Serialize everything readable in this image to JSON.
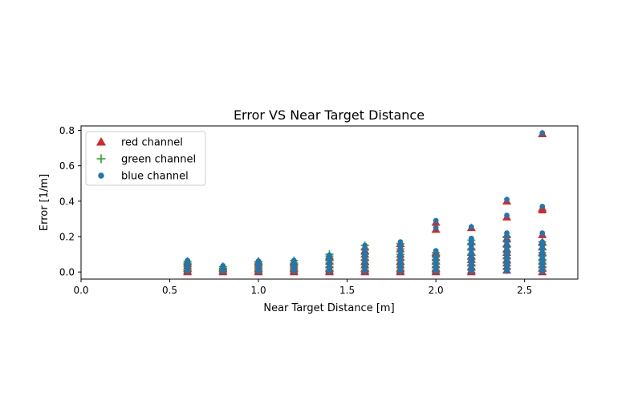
{
  "chart_data": {
    "type": "scatter",
    "title": "Error VS Near Target Distance",
    "xlabel": "Near Target Distance [m]",
    "ylabel": "Error [1/m]",
    "xlim": [
      0.0,
      2.8
    ],
    "ylim": [
      -0.04,
      0.825
    ],
    "xticks": [
      "0.0",
      "0.5",
      "1.0",
      "1.5",
      "2.0",
      "2.5"
    ],
    "yticks": [
      "0.0",
      "0.2",
      "0.4",
      "0.6",
      "0.8"
    ],
    "grid": false,
    "legend_position": "top-left",
    "colors": {
      "red": "#d62728",
      "green": "#2ca02c",
      "blue": "#1f77b4"
    },
    "series": [
      {
        "name": "red channel",
        "marker": "triangle",
        "points": [
          [
            0.6,
            0.0
          ],
          [
            0.6,
            0.01
          ],
          [
            0.6,
            0.02
          ],
          [
            0.6,
            0.035
          ],
          [
            0.6,
            0.05
          ],
          [
            0.6,
            0.06
          ],
          [
            0.8,
            0.0
          ],
          [
            0.8,
            0.01
          ],
          [
            0.8,
            0.02
          ],
          [
            0.8,
            0.03
          ],
          [
            1.0,
            0.0
          ],
          [
            1.0,
            0.01
          ],
          [
            1.0,
            0.02
          ],
          [
            1.0,
            0.035
          ],
          [
            1.0,
            0.05
          ],
          [
            1.0,
            0.06
          ],
          [
            1.2,
            0.0
          ],
          [
            1.2,
            0.01
          ],
          [
            1.2,
            0.02
          ],
          [
            1.2,
            0.035
          ],
          [
            1.2,
            0.05
          ],
          [
            1.2,
            0.06
          ],
          [
            1.4,
            0.0
          ],
          [
            1.4,
            0.01
          ],
          [
            1.4,
            0.02
          ],
          [
            1.4,
            0.04
          ],
          [
            1.4,
            0.06
          ],
          [
            1.4,
            0.08
          ],
          [
            1.4,
            0.09
          ],
          [
            1.6,
            0.0
          ],
          [
            1.6,
            0.01
          ],
          [
            1.6,
            0.02
          ],
          [
            1.6,
            0.04
          ],
          [
            1.6,
            0.06
          ],
          [
            1.6,
            0.08
          ],
          [
            1.6,
            0.1
          ],
          [
            1.6,
            0.12
          ],
          [
            1.6,
            0.14
          ],
          [
            1.8,
            0.0
          ],
          [
            1.8,
            0.01
          ],
          [
            1.8,
            0.02
          ],
          [
            1.8,
            0.04
          ],
          [
            1.8,
            0.06
          ],
          [
            1.8,
            0.08
          ],
          [
            1.8,
            0.1
          ],
          [
            1.8,
            0.13
          ],
          [
            1.8,
            0.16
          ],
          [
            2.0,
            0.0
          ],
          [
            2.0,
            0.01
          ],
          [
            2.0,
            0.02
          ],
          [
            2.0,
            0.04
          ],
          [
            2.0,
            0.06
          ],
          [
            2.0,
            0.08
          ],
          [
            2.0,
            0.1
          ],
          [
            2.0,
            0.11
          ],
          [
            2.0,
            0.24
          ],
          [
            2.0,
            0.28
          ],
          [
            2.2,
            0.0
          ],
          [
            2.2,
            0.01
          ],
          [
            2.2,
            0.03
          ],
          [
            2.2,
            0.05
          ],
          [
            2.2,
            0.07
          ],
          [
            2.2,
            0.09
          ],
          [
            2.2,
            0.11
          ],
          [
            2.2,
            0.14
          ],
          [
            2.2,
            0.17
          ],
          [
            2.2,
            0.25
          ],
          [
            2.4,
            0.01
          ],
          [
            2.4,
            0.03
          ],
          [
            2.4,
            0.05
          ],
          [
            2.4,
            0.07
          ],
          [
            2.4,
            0.09
          ],
          [
            2.4,
            0.11
          ],
          [
            2.4,
            0.13
          ],
          [
            2.4,
            0.16
          ],
          [
            2.4,
            0.19
          ],
          [
            2.4,
            0.21
          ],
          [
            2.4,
            0.31
          ],
          [
            2.4,
            0.4
          ],
          [
            2.6,
            0.0
          ],
          [
            2.6,
            0.02
          ],
          [
            2.6,
            0.04
          ],
          [
            2.6,
            0.06
          ],
          [
            2.6,
            0.08
          ],
          [
            2.6,
            0.11
          ],
          [
            2.6,
            0.14
          ],
          [
            2.6,
            0.17
          ],
          [
            2.6,
            0.21
          ],
          [
            2.6,
            0.35
          ],
          [
            2.6,
            0.36
          ],
          [
            2.6,
            0.78
          ]
        ]
      },
      {
        "name": "green channel",
        "marker": "plus",
        "points": [
          [
            0.6,
            0.01
          ],
          [
            0.6,
            0.03
          ],
          [
            0.6,
            0.05
          ],
          [
            0.6,
            0.06
          ],
          [
            0.8,
            0.01
          ],
          [
            0.8,
            0.02
          ],
          [
            0.8,
            0.03
          ],
          [
            1.0,
            0.01
          ],
          [
            1.0,
            0.03
          ],
          [
            1.0,
            0.05
          ],
          [
            1.0,
            0.06
          ],
          [
            1.2,
            0.01
          ],
          [
            1.2,
            0.03
          ],
          [
            1.2,
            0.05
          ],
          [
            1.2,
            0.065
          ],
          [
            1.4,
            0.01
          ],
          [
            1.4,
            0.03
          ],
          [
            1.4,
            0.05
          ],
          [
            1.4,
            0.07
          ],
          [
            1.4,
            0.09
          ],
          [
            1.4,
            0.1
          ],
          [
            1.6,
            0.01
          ],
          [
            1.6,
            0.04
          ],
          [
            1.6,
            0.07
          ],
          [
            1.6,
            0.1
          ],
          [
            1.6,
            0.13
          ],
          [
            1.6,
            0.15
          ],
          [
            1.8,
            0.01
          ],
          [
            1.8,
            0.04
          ],
          [
            1.8,
            0.07
          ],
          [
            1.8,
            0.1
          ],
          [
            1.8,
            0.13
          ],
          [
            1.8,
            0.16
          ],
          [
            2.0,
            0.01
          ],
          [
            2.0,
            0.03
          ],
          [
            2.0,
            0.05
          ],
          [
            2.0,
            0.07
          ],
          [
            2.0,
            0.09
          ],
          [
            2.0,
            0.11
          ],
          [
            2.2,
            0.01
          ],
          [
            2.2,
            0.04
          ],
          [
            2.2,
            0.07
          ],
          [
            2.2,
            0.1
          ],
          [
            2.2,
            0.13
          ],
          [
            2.2,
            0.16
          ],
          [
            2.2,
            0.18
          ],
          [
            2.4,
            0.02
          ],
          [
            2.4,
            0.05
          ],
          [
            2.4,
            0.08
          ],
          [
            2.4,
            0.11
          ],
          [
            2.4,
            0.14
          ],
          [
            2.4,
            0.17
          ],
          [
            2.4,
            0.2
          ],
          [
            2.6,
            0.01
          ],
          [
            2.6,
            0.03
          ],
          [
            2.6,
            0.05
          ],
          [
            2.6,
            0.07
          ],
          [
            2.6,
            0.09
          ],
          [
            2.6,
            0.11
          ],
          [
            2.6,
            0.13
          ],
          [
            2.6,
            0.15
          ],
          [
            2.6,
            0.17
          ]
        ]
      },
      {
        "name": "blue channel",
        "marker": "circle",
        "points": [
          [
            0.6,
            0.005
          ],
          [
            0.6,
            0.015
          ],
          [
            0.6,
            0.025
          ],
          [
            0.6,
            0.035
          ],
          [
            0.6,
            0.045
          ],
          [
            0.6,
            0.055
          ],
          [
            0.6,
            0.065
          ],
          [
            0.8,
            0.005
          ],
          [
            0.8,
            0.015
          ],
          [
            0.8,
            0.025
          ],
          [
            0.8,
            0.035
          ],
          [
            1.0,
            0.005
          ],
          [
            1.0,
            0.015
          ],
          [
            1.0,
            0.025
          ],
          [
            1.0,
            0.035
          ],
          [
            1.0,
            0.045
          ],
          [
            1.0,
            0.055
          ],
          [
            1.0,
            0.062
          ],
          [
            1.2,
            0.005
          ],
          [
            1.2,
            0.015
          ],
          [
            1.2,
            0.025
          ],
          [
            1.2,
            0.035
          ],
          [
            1.2,
            0.045
          ],
          [
            1.2,
            0.055
          ],
          [
            1.2,
            0.065
          ],
          [
            1.4,
            0.005
          ],
          [
            1.4,
            0.02
          ],
          [
            1.4,
            0.035
          ],
          [
            1.4,
            0.05
          ],
          [
            1.4,
            0.065
          ],
          [
            1.4,
            0.08
          ],
          [
            1.4,
            0.095
          ],
          [
            1.6,
            0.005
          ],
          [
            1.6,
            0.02
          ],
          [
            1.6,
            0.04
          ],
          [
            1.6,
            0.06
          ],
          [
            1.6,
            0.08
          ],
          [
            1.6,
            0.1
          ],
          [
            1.6,
            0.12
          ],
          [
            1.6,
            0.15
          ],
          [
            1.8,
            0.005
          ],
          [
            1.8,
            0.02
          ],
          [
            1.8,
            0.04
          ],
          [
            1.8,
            0.06
          ],
          [
            1.8,
            0.08
          ],
          [
            1.8,
            0.1
          ],
          [
            1.8,
            0.12
          ],
          [
            1.8,
            0.14
          ],
          [
            1.8,
            0.17
          ],
          [
            2.0,
            0.005
          ],
          [
            2.0,
            0.015
          ],
          [
            2.0,
            0.03
          ],
          [
            2.0,
            0.045
          ],
          [
            2.0,
            0.06
          ],
          [
            2.0,
            0.075
          ],
          [
            2.0,
            0.09
          ],
          [
            2.0,
            0.12
          ],
          [
            2.0,
            0.25
          ],
          [
            2.0,
            0.29
          ],
          [
            2.2,
            0.005
          ],
          [
            2.2,
            0.02
          ],
          [
            2.2,
            0.035
          ],
          [
            2.2,
            0.05
          ],
          [
            2.2,
            0.065
          ],
          [
            2.2,
            0.08
          ],
          [
            2.2,
            0.095
          ],
          [
            2.2,
            0.11
          ],
          [
            2.2,
            0.13
          ],
          [
            2.2,
            0.15
          ],
          [
            2.2,
            0.17
          ],
          [
            2.2,
            0.19
          ],
          [
            2.2,
            0.255
          ],
          [
            2.4,
            0.005
          ],
          [
            2.4,
            0.02
          ],
          [
            2.4,
            0.035
          ],
          [
            2.4,
            0.05
          ],
          [
            2.4,
            0.065
          ],
          [
            2.4,
            0.08
          ],
          [
            2.4,
            0.095
          ],
          [
            2.4,
            0.11
          ],
          [
            2.4,
            0.13
          ],
          [
            2.4,
            0.15
          ],
          [
            2.4,
            0.17
          ],
          [
            2.4,
            0.2
          ],
          [
            2.4,
            0.22
          ],
          [
            2.4,
            0.32
          ],
          [
            2.4,
            0.41
          ],
          [
            2.6,
            0.005
          ],
          [
            2.6,
            0.02
          ],
          [
            2.6,
            0.035
          ],
          [
            2.6,
            0.05
          ],
          [
            2.6,
            0.065
          ],
          [
            2.6,
            0.08
          ],
          [
            2.6,
            0.095
          ],
          [
            2.6,
            0.11
          ],
          [
            2.6,
            0.13
          ],
          [
            2.6,
            0.15
          ],
          [
            2.6,
            0.17
          ],
          [
            2.6,
            0.22
          ],
          [
            2.6,
            0.37
          ],
          [
            2.6,
            0.785
          ]
        ]
      }
    ]
  }
}
